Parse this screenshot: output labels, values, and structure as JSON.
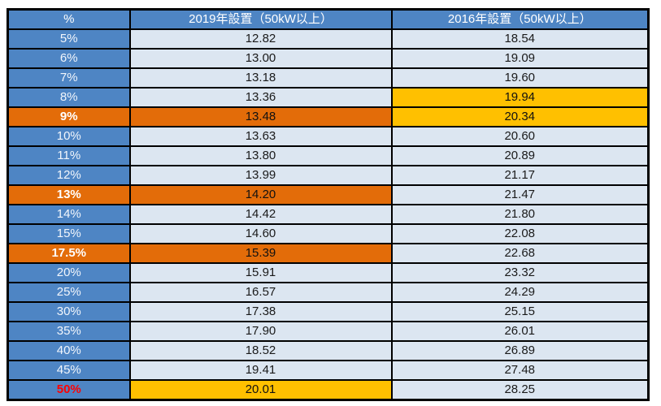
{
  "chart_data": {
    "type": "table",
    "columns": [
      "%",
      "2019年設置（50kW以上）",
      "2016年設置（50kW以上）"
    ],
    "rows": [
      {
        "rate": "5%",
        "v2019": "12.82",
        "v2016": "18.54",
        "rate_style": "",
        "v2019_style": "",
        "v2016_style": ""
      },
      {
        "rate": "6%",
        "v2019": "13.00",
        "v2016": "19.09",
        "rate_style": "",
        "v2019_style": "",
        "v2016_style": ""
      },
      {
        "rate": "7%",
        "v2019": "13.18",
        "v2016": "19.60",
        "rate_style": "",
        "v2019_style": "",
        "v2016_style": ""
      },
      {
        "rate": "8%",
        "v2019": "13.36",
        "v2016": "19.94",
        "rate_style": "",
        "v2019_style": "",
        "v2016_style": "yellow"
      },
      {
        "rate": "9%",
        "v2019": "13.48",
        "v2016": "20.34",
        "rate_style": "orange",
        "v2019_style": "orange",
        "v2016_style": "yellow"
      },
      {
        "rate": "10%",
        "v2019": "13.63",
        "v2016": "20.60",
        "rate_style": "",
        "v2019_style": "",
        "v2016_style": ""
      },
      {
        "rate": "11%",
        "v2019": "13.80",
        "v2016": "20.89",
        "rate_style": "",
        "v2019_style": "",
        "v2016_style": ""
      },
      {
        "rate": "12%",
        "v2019": "13.99",
        "v2016": "21.17",
        "rate_style": "",
        "v2019_style": "",
        "v2016_style": ""
      },
      {
        "rate": "13%",
        "v2019": "14.20",
        "v2016": "21.47",
        "rate_style": "orange",
        "v2019_style": "orange",
        "v2016_style": ""
      },
      {
        "rate": "14%",
        "v2019": "14.42",
        "v2016": "21.80",
        "rate_style": "",
        "v2019_style": "",
        "v2016_style": ""
      },
      {
        "rate": "15%",
        "v2019": "14.60",
        "v2016": "22.08",
        "rate_style": "",
        "v2019_style": "",
        "v2016_style": ""
      },
      {
        "rate": "17.5%",
        "v2019": "15.39",
        "v2016": "22.68",
        "rate_style": "orange",
        "v2019_style": "orange",
        "v2016_style": ""
      },
      {
        "rate": "20%",
        "v2019": "15.91",
        "v2016": "23.32",
        "rate_style": "",
        "v2019_style": "",
        "v2016_style": ""
      },
      {
        "rate": "25%",
        "v2019": "16.57",
        "v2016": "24.29",
        "rate_style": "",
        "v2019_style": "",
        "v2016_style": ""
      },
      {
        "rate": "30%",
        "v2019": "17.38",
        "v2016": "25.15",
        "rate_style": "",
        "v2019_style": "",
        "v2016_style": ""
      },
      {
        "rate": "35%",
        "v2019": "17.90",
        "v2016": "26.01",
        "rate_style": "",
        "v2019_style": "",
        "v2016_style": ""
      },
      {
        "rate": "40%",
        "v2019": "18.52",
        "v2016": "26.89",
        "rate_style": "",
        "v2019_style": "",
        "v2016_style": ""
      },
      {
        "rate": "45%",
        "v2019": "19.41",
        "v2016": "27.48",
        "rate_style": "",
        "v2019_style": "",
        "v2016_style": ""
      },
      {
        "rate": "50%",
        "v2019": "20.01",
        "v2016": "28.25",
        "rate_style": "red",
        "v2019_style": "yellow",
        "v2016_style": ""
      }
    ],
    "colors": {
      "header_blue": "#4e85c4",
      "label_blue": "#4e85c4",
      "cell_light_blue": "#dce6f1",
      "highlight_orange": "#e36c09",
      "highlight_yellow": "#ffc000",
      "red_label_text": "#ff0000",
      "border": "#000000"
    },
    "legend_position": "none",
    "grid": true
  }
}
